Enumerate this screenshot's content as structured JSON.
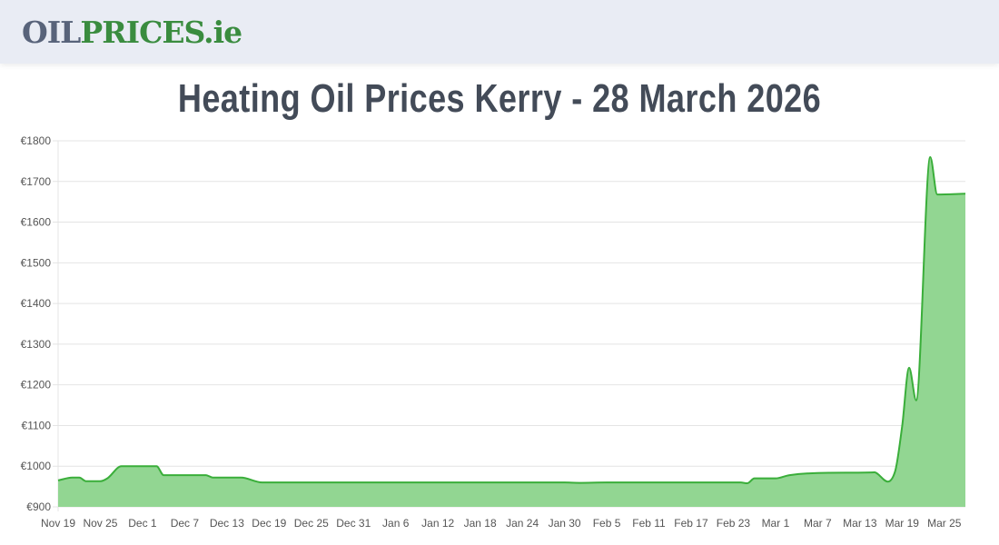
{
  "header": {
    "logo_part1": "OIL",
    "logo_part2": "PRICES.ie"
  },
  "page_title": "Heating Oil Prices Kerry - 28 March 2026",
  "colors": {
    "line": "#3aae3a",
    "fill": "#92d692",
    "grid": "#e4e4e4"
  },
  "chart_data": {
    "type": "area",
    "title": "",
    "xlabel": "",
    "ylabel": "",
    "ylim": [
      900,
      1800
    ],
    "grid": true,
    "yticks": [
      "€900",
      "€1000",
      "€1100",
      "€1200",
      "€1300",
      "€1400",
      "€1500",
      "€1600",
      "€1700",
      "€1800"
    ],
    "ytick_values": [
      900,
      1000,
      1100,
      1200,
      1300,
      1400,
      1500,
      1600,
      1700,
      1800
    ],
    "xlim": [
      "2025-11-19",
      "2026-03-28"
    ],
    "xticks": [
      {
        "label": "Nov 19",
        "date": "2025-11-19"
      },
      {
        "label": "Nov 25",
        "date": "2025-11-25"
      },
      {
        "label": "Dec 1",
        "date": "2025-12-01"
      },
      {
        "label": "Dec 7",
        "date": "2025-12-07"
      },
      {
        "label": "Dec 13",
        "date": "2025-12-13"
      },
      {
        "label": "Dec 19",
        "date": "2025-12-19"
      },
      {
        "label": "Dec 25",
        "date": "2025-12-25"
      },
      {
        "label": "Dec 31",
        "date": "2025-12-31"
      },
      {
        "label": "Jan 6",
        "date": "2026-01-06"
      },
      {
        "label": "Jan 12",
        "date": "2026-01-12"
      },
      {
        "label": "Jan 18",
        "date": "2026-01-18"
      },
      {
        "label": "Jan 24",
        "date": "2026-01-24"
      },
      {
        "label": "Jan 30",
        "date": "2026-01-30"
      },
      {
        "label": "Feb 5",
        "date": "2026-02-05"
      },
      {
        "label": "Feb 11",
        "date": "2026-02-11"
      },
      {
        "label": "Feb 17",
        "date": "2026-02-17"
      },
      {
        "label": "Feb 23",
        "date": "2026-02-23"
      },
      {
        "label": "Mar 1",
        "date": "2026-03-01"
      },
      {
        "label": "Mar 7",
        "date": "2026-03-07"
      },
      {
        "label": "Mar 13",
        "date": "2026-03-13"
      },
      {
        "label": "Mar 19",
        "date": "2026-03-19"
      },
      {
        "label": "Mar 25",
        "date": "2026-03-25"
      }
    ],
    "points": [
      [
        "2025-11-19",
        965
      ],
      [
        "2025-11-21",
        972
      ],
      [
        "2025-11-22",
        972
      ],
      [
        "2025-11-23",
        963
      ],
      [
        "2025-11-25",
        963
      ],
      [
        "2025-11-26",
        970
      ],
      [
        "2025-11-28",
        1000
      ],
      [
        "2025-12-03",
        1000
      ],
      [
        "2025-12-04",
        978
      ],
      [
        "2025-12-10",
        978
      ],
      [
        "2025-12-11",
        972
      ],
      [
        "2025-12-15",
        972
      ],
      [
        "2025-12-18",
        960
      ],
      [
        "2026-01-30",
        960
      ],
      [
        "2026-02-01",
        959
      ],
      [
        "2026-02-05",
        960
      ],
      [
        "2026-02-24",
        960
      ],
      [
        "2026-02-25",
        958
      ],
      [
        "2026-02-26",
        970
      ],
      [
        "2026-03-01",
        970
      ],
      [
        "2026-03-03",
        978
      ],
      [
        "2026-03-15",
        985
      ],
      [
        "2026-03-18",
        987
      ],
      [
        "2026-03-19",
        1097
      ],
      [
        "2026-03-20",
        1242
      ],
      [
        "2026-03-21",
        1162
      ],
      [
        "2026-03-23",
        1760
      ],
      [
        "2026-03-24",
        1668
      ],
      [
        "2026-03-28",
        1670
      ]
    ]
  }
}
